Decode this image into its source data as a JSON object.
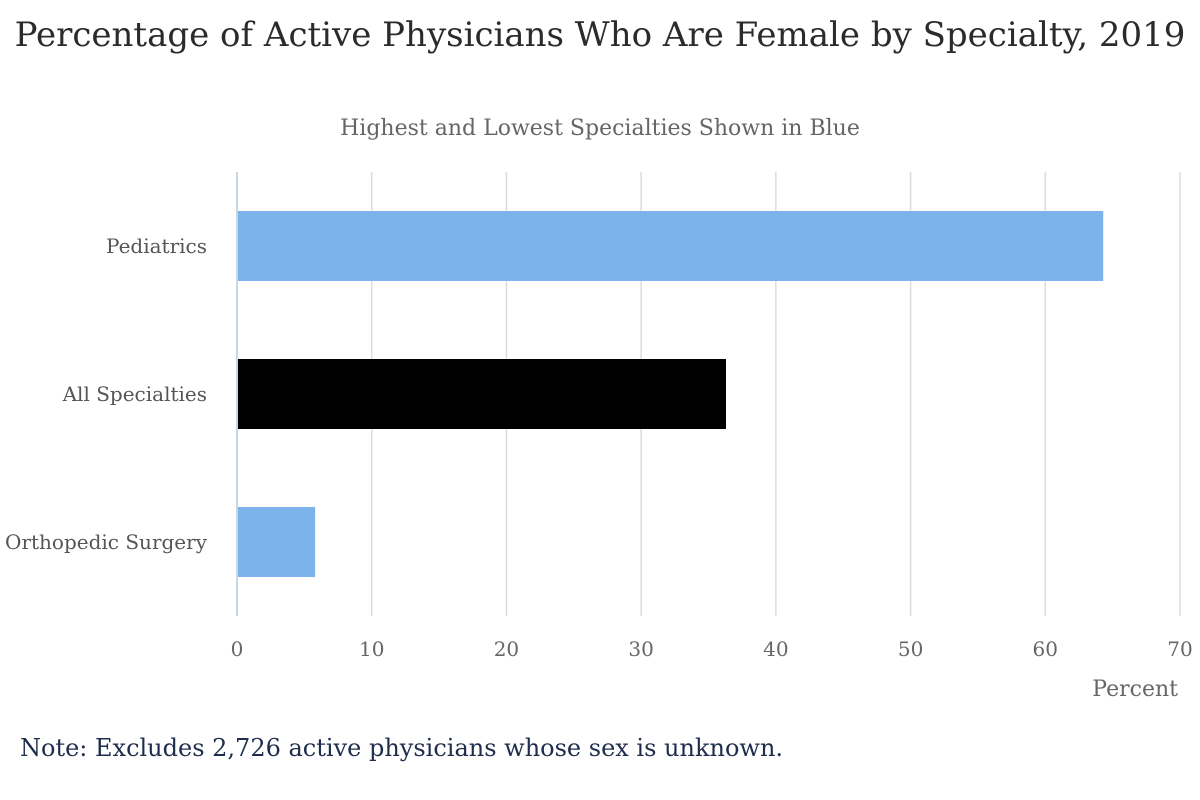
{
  "title": "Percentage of Active Physicians Who Are Female by Specialty, 2019",
  "subtitle": "Highest and Lowest Specialties Shown in Blue",
  "note": "Note: Excludes 2,726 active physicians whose sex is unknown.",
  "colors": {
    "highlight": "#7cb3ea",
    "baseline": "#000000",
    "grid": "#dddddd",
    "axis": "#c9d6e3"
  },
  "chart_data": {
    "type": "bar",
    "orientation": "horizontal",
    "title": "Percentage of Active Physicians Who Are Female by Specialty, 2019",
    "subtitle": "Highest and Lowest Specialties Shown in Blue",
    "categories": [
      "Pediatrics",
      "All Specialties",
      "Orthopedic Surgery"
    ],
    "values": [
      64.3,
      36.3,
      5.8
    ],
    "bar_colors": [
      "#7cb3ea",
      "#000000",
      "#7cb3ea"
    ],
    "xlabel": "Percent",
    "ylabel": "",
    "xlim": [
      0,
      70
    ],
    "xticks": [
      0,
      10,
      20,
      30,
      40,
      50,
      60,
      70
    ],
    "grid": "vertical",
    "legend": "none"
  }
}
